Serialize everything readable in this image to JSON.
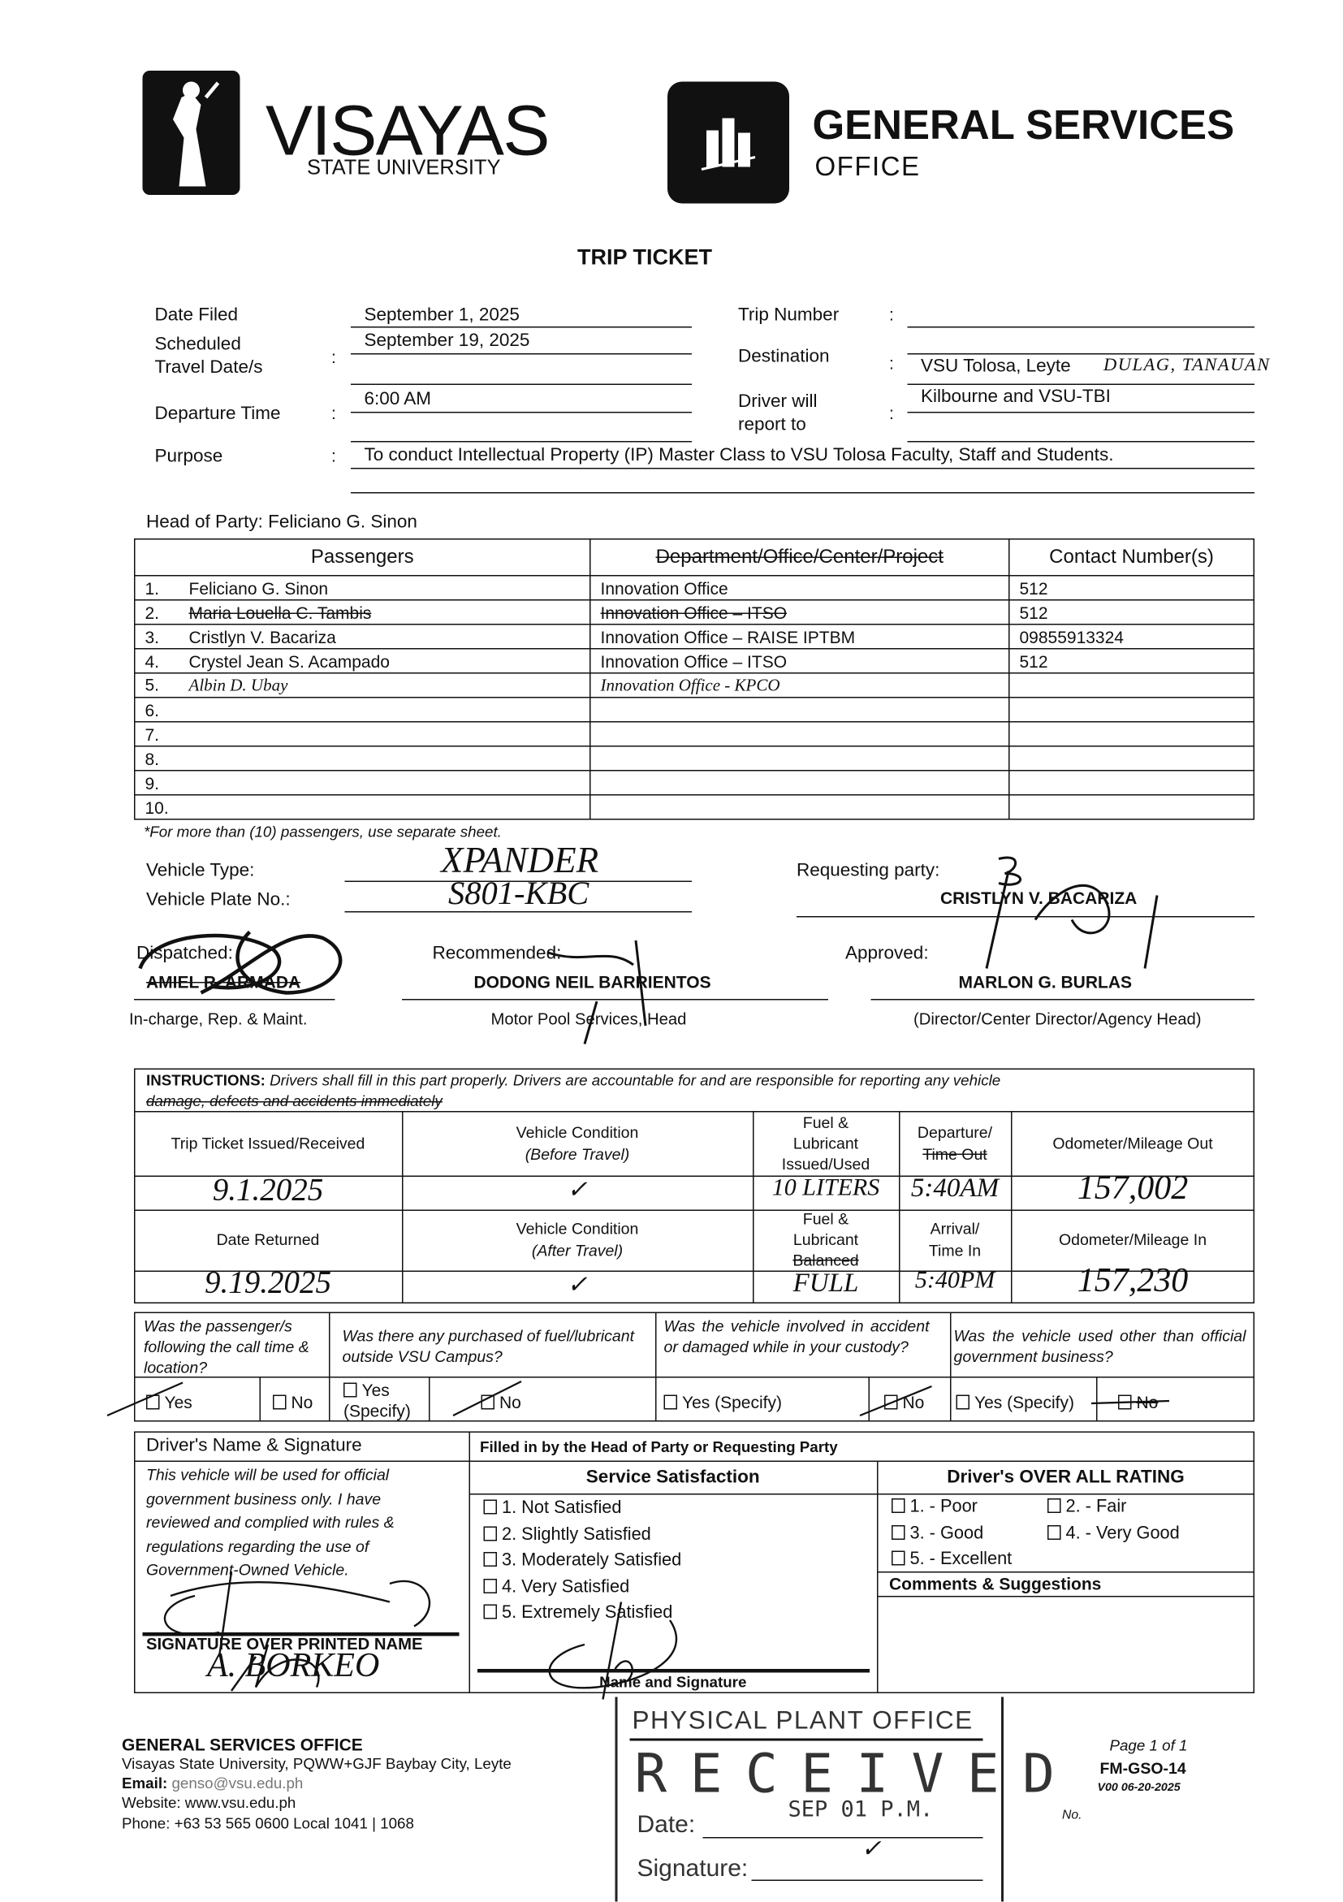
{
  "header": {
    "university_name": "VISAYAS",
    "university_sub": "STATE UNIVERSITY",
    "office_name": "GENERAL SERVICES",
    "office_sub": "OFFICE"
  },
  "title": "TRIP TICKET",
  "trip": {
    "date_filed_label": "Date Filed",
    "date_filed": "September 1, 2025",
    "scheduled_label_1": "Scheduled",
    "scheduled_label_2": "Travel Date/s",
    "scheduled": "September 19, 2025",
    "departure_label": "Departure Time",
    "departure": "6:00 AM",
    "purpose_label": "Purpose",
    "purpose": "To conduct Intellectual Property (IP) Master Class to VSU Tolosa Faculty, Staff and Students.",
    "trip_number_label": "Trip Number",
    "trip_number": "",
    "destination_label": "Destination",
    "destination": "VSU Tolosa, Leyte",
    "destination_handwritten": "DULAG, TANAUAN",
    "report_label_1": "Driver will",
    "report_label_2": "report to",
    "report_to": "Kilbourne and VSU-TBI",
    "colon": ":"
  },
  "head_of_party": "Head of Party: Feliciano G. Sinon",
  "passengers": {
    "headers": [
      "Passengers",
      "Department/Office/Center/Project",
      "Contact Number(s)"
    ],
    "rows": [
      {
        "no": "1.",
        "name": "Feliciano G. Sinon",
        "dept": "Innovation Office",
        "contact": "512"
      },
      {
        "no": "2.",
        "name": "Maria Louella C. Tambis",
        "dept": "Innovation Office – ITSO",
        "contact": "512"
      },
      {
        "no": "3.",
        "name": "Cristlyn V. Bacariza",
        "dept": "Innovation Office – RAISE IPTBM",
        "contact": "09855913324"
      },
      {
        "no": "4.",
        "name": "Crystel Jean S. Acampado",
        "dept": "Innovation Office – ITSO",
        "contact": "512"
      },
      {
        "no": "5.",
        "name": "Albin D. Ubay",
        "dept": "Innovation Office - KPCO",
        "contact": "",
        "handwritten": true
      },
      {
        "no": "6.",
        "name": "",
        "dept": "",
        "contact": ""
      },
      {
        "no": "7.",
        "name": "",
        "dept": "",
        "contact": ""
      },
      {
        "no": "8.",
        "name": "",
        "dept": "",
        "contact": ""
      },
      {
        "no": "9.",
        "name": "",
        "dept": "",
        "contact": ""
      },
      {
        "no": "10.",
        "name": "",
        "dept": "",
        "contact": ""
      }
    ],
    "footnote": "*For more than (10) passengers, use separate sheet."
  },
  "vehicle": {
    "type_label": "Vehicle Type:",
    "type": "XPANDER",
    "plate_label": "Vehicle Plate No.:",
    "plate": "S801-KBC"
  },
  "signatories": {
    "requesting_label": "Requesting party:",
    "requesting_name": "CRISTLYN V. BACARIZA",
    "dispatched_label": "Dispatched:",
    "dispatched_name": "AMIEL R. ARMADA",
    "dispatched_title": "In-charge, Rep. & Maint.",
    "recommended_label": "Recommended:",
    "recommended_name": "DODONG NEIL BARRIENTOS",
    "recommended_title": "Motor Pool Services, Head",
    "approved_label": "Approved:",
    "approved_name": "MARLON G. BURLAS",
    "approved_title": "(Director/Center Director/Agency Head)"
  },
  "instructions": {
    "label": "INSTRUCTIONS:",
    "text_1": "Drivers shall fill in this part properly.  Drivers are accountable for and are responsible for reporting any vehicle",
    "text_2": "damage, defects and accidents immediately",
    "out_headers": [
      "Trip Ticket Issued/Received",
      "Vehicle Condition",
      "(Before Travel)",
      "Fuel &",
      "Lubricant",
      "Issued/Used",
      "Departure/",
      "Time Out",
      "Odometer/Mileage Out"
    ],
    "out_values": [
      "9.1.2025",
      "✓",
      "10 LITERS",
      "5:40AM",
      "157,002"
    ],
    "in_headers": [
      "Date Returned",
      "Vehicle Condition",
      "(After Travel)",
      "Fuel &",
      "Lubricant",
      "Balanced",
      "Arrival/",
      "Time In",
      "Odometer/Mileage In"
    ],
    "in_values": [
      "9.19.2025",
      "✓",
      "FULL",
      "5:40PM",
      "157,230"
    ]
  },
  "questions": [
    {
      "text": "Was the passenger/s following the call time & location?",
      "options": [
        "Yes",
        "No"
      ],
      "checked": "Yes"
    },
    {
      "text": "Was there any purchased of fuel/lubricant outside VSU Campus?",
      "options": [
        "Yes (Specify)",
        "No"
      ],
      "checked": "No"
    },
    {
      "text": "Was the vehicle involved in accident or damaged while in your custody?",
      "options": [
        "Yes (Specify)",
        "No"
      ],
      "checked": "No"
    },
    {
      "text": "Was the vehicle used other than official government business?",
      "options": [
        "Yes (Specify)",
        "No"
      ],
      "checked": "No"
    }
  ],
  "driver": {
    "header": "Driver's Name & Signature",
    "statement": [
      "This vehicle will be used for official",
      "government business only.  I have",
      "reviewed and complied with rules &",
      "regulations regarding the use of",
      "Government-Owned Vehicle."
    ],
    "signature_label": "SIGNATURE OVER PRINTED NAME",
    "printed_name": "A. BORKEO"
  },
  "evaluation": {
    "header": "Filled in by the Head of Party or Requesting Party",
    "service_title": "Service Satisfaction",
    "service_options": [
      "1. Not Satisfied",
      "2. Slightly Satisfied",
      "3. Moderately Satisfied",
      "4. Very Satisfied",
      "5. Extremely Satisfied"
    ],
    "name_signature_label": "Name and Signature",
    "rating_title": "Driver's OVER ALL RATING",
    "rating_options": [
      "1. - Poor",
      "2. - Fair",
      "3. - Good",
      "4. - Very Good",
      "5. - Excellent"
    ],
    "comments_title": "Comments & Suggestions"
  },
  "footer": {
    "office": "GENERAL SERVICES OFFICE",
    "address": "Visayas State University, PQWW+GJF Baybay City, Leyte",
    "email_label": "Email:",
    "email": "genso@vsu.edu.ph",
    "website": "Website: www.vsu.edu.ph",
    "phone": "Phone: +63 53 565 0600 Local 1041 | 1068",
    "page": "Page 1 of 1",
    "form_code": "FM-GSO-14",
    "version": "V00 06-20-2025",
    "no_label": "No."
  },
  "stamp": {
    "office": "PHYSICAL PLANT OFFICE",
    "received": "RECEIVED",
    "date_label": "Date:",
    "date_value": "SEP 01 P.M.",
    "signature_label": "Signature:"
  }
}
